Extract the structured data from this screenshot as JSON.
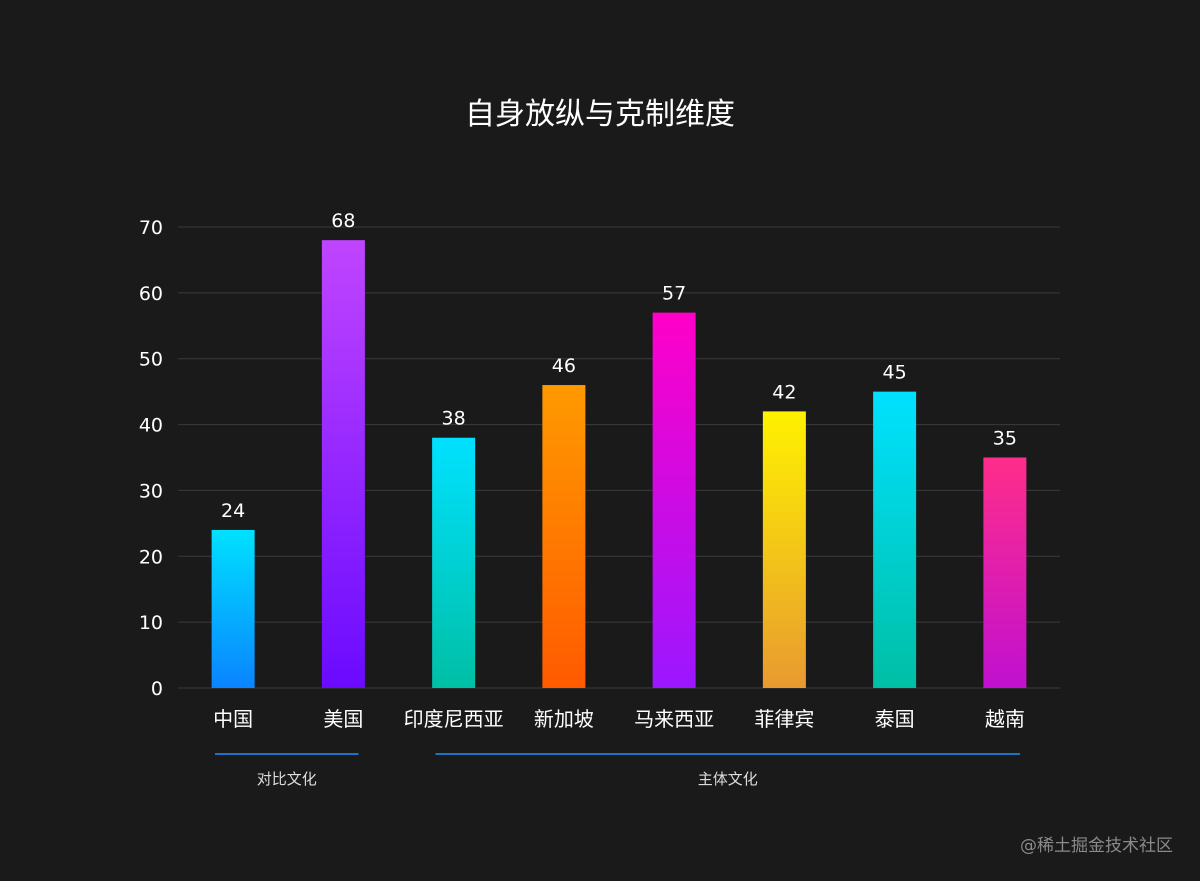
{
  "chart_data": {
    "type": "bar",
    "title": "自身放纵与克制维度",
    "categories": [
      "中国",
      "美国",
      "印度尼西亚",
      "新加坡",
      "马来西亚",
      "菲律宾",
      "泰国",
      "越南"
    ],
    "values": [
      24,
      68,
      38,
      46,
      57,
      42,
      45,
      35
    ],
    "ylim": [
      0,
      70
    ],
    "yticks": [
      0,
      10,
      20,
      30,
      40,
      50,
      60,
      70
    ],
    "xlabel": "",
    "ylabel": "",
    "grid": true,
    "bar_gradients": [
      [
        "#00e1ff",
        "#0a84ff"
      ],
      [
        "#c045ff",
        "#6a0aff"
      ],
      [
        "#00e1ff",
        "#00bfa5"
      ],
      [
        "#ff9a00",
        "#ff5a00"
      ],
      [
        "#ff00c8",
        "#9b17ff"
      ],
      [
        "#fff200",
        "#e89a30"
      ],
      [
        "#00e1ff",
        "#00bfa5"
      ],
      [
        "#ff2d8a",
        "#c010d0"
      ]
    ],
    "groups": [
      {
        "label": "对比文化",
        "start": 0,
        "end": 1
      },
      {
        "label": "主体文化",
        "start": 2,
        "end": 7
      }
    ],
    "group_line_color": "#1e90ff"
  },
  "watermark": "@稀土掘金技术社区"
}
